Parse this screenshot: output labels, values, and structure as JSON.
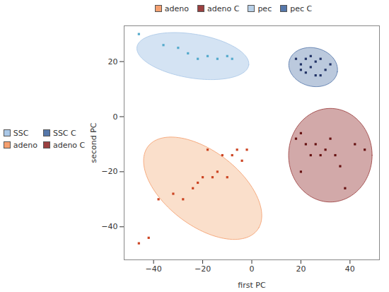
{
  "chart_data": {
    "type": "scatter",
    "xlabel": "first PC",
    "ylabel": "second PC",
    "xlim": [
      -52,
      52
    ],
    "ylim": [
      -52,
      33
    ],
    "xticks": [
      -40,
      -20,
      0,
      20,
      40
    ],
    "yticks": [
      -40,
      -20,
      0,
      20
    ],
    "series": [
      {
        "name": "SSC",
        "color": "#aac8e8",
        "point_color": "#55aacc",
        "marker": "square",
        "x": [
          -46,
          -36,
          -30,
          -26,
          -22,
          -18,
          -14,
          -10,
          -8
        ],
        "values": [
          30,
          26,
          25,
          23,
          21,
          22,
          21,
          22,
          21
        ],
        "ellipse": {
          "center": [
            -24,
            22
          ],
          "width": 46,
          "height": 16,
          "angle": -8
        }
      },
      {
        "name": "SSC C",
        "color": "#5577aa",
        "point_color": "#223366",
        "marker": "square",
        "x": [
          18,
          20,
          22,
          24,
          26,
          28,
          30,
          32,
          22,
          26,
          20,
          28,
          24
        ],
        "values": [
          21,
          19,
          21,
          18,
          20,
          21,
          17,
          19,
          16,
          15,
          17,
          15,
          22
        ],
        "ellipse": {
          "center": [
            25,
            18
          ],
          "width": 20,
          "height": 14,
          "angle": -10
        }
      },
      {
        "name": "adeno",
        "color": "#f5a070",
        "fill_color": "#f5c5a0",
        "point_color": "#cc4422",
        "marker": "square",
        "x": [
          -46,
          -42,
          -38,
          -32,
          -28,
          -24,
          -22,
          -20,
          -16,
          -14,
          -10,
          -8,
          -6,
          -4,
          -2,
          -18,
          -12
        ],
        "values": [
          -46,
          -44,
          -30,
          -28,
          -30,
          -26,
          -24,
          -22,
          -22,
          -20,
          -22,
          -14,
          -12,
          -16,
          -12,
          -12,
          -14
        ],
        "ellipse": {
          "center": [
            -20,
            -26
          ],
          "width": 54,
          "height": 28,
          "angle": -32
        }
      },
      {
        "name": "adeno C",
        "color": "#9b4040",
        "point_color": "#661111",
        "marker": "square",
        "x": [
          18,
          20,
          22,
          24,
          26,
          28,
          30,
          32,
          34,
          36,
          38,
          42,
          46,
          20
        ],
        "values": [
          -8,
          -6,
          -10,
          -14,
          -10,
          -14,
          -12,
          -8,
          -14,
          -18,
          -26,
          -10,
          -12,
          -20
        ],
        "ellipse": {
          "center": [
            32,
            -14
          ],
          "width": 34,
          "height": 34,
          "angle": 0
        }
      }
    ],
    "top_legend": [
      {
        "label": "adeno",
        "color": "#f5a070"
      },
      {
        "label": "adeno C",
        "color": "#9b4040"
      },
      {
        "label": "pec",
        "color": "#b8d0e8"
      },
      {
        "label": "pec C",
        "color": "#5577aa"
      }
    ]
  }
}
